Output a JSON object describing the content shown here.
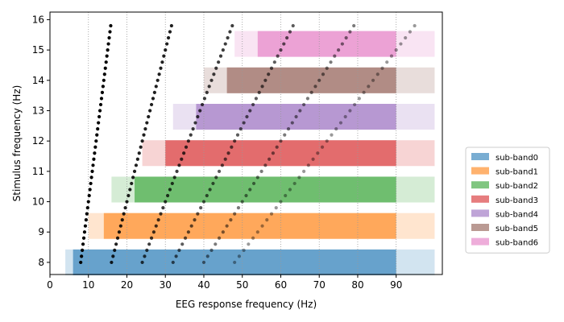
{
  "chart_data": {
    "type": "bar",
    "orientation": "horizontal-range",
    "title": "",
    "xlabel": "EEG response frequency (Hz)",
    "ylabel": "Stimulus frequency (Hz)",
    "xlim": [
      0,
      102
    ],
    "ylim": [
      7.6,
      16.25
    ],
    "x_ticks": [
      0,
      10,
      20,
      30,
      40,
      50,
      60,
      70,
      80,
      90
    ],
    "y_ticks": [
      8,
      9,
      10,
      11,
      12,
      13,
      14,
      15,
      16
    ],
    "vertical_dotted_gridlines": [
      10,
      20,
      30,
      40,
      50,
      60,
      70,
      80,
      90
    ],
    "band_high_limit": 90,
    "pale_extension_to": 100,
    "legend_placement": "right-outside",
    "colors": {
      "sub-band0": "#1f77b4",
      "sub-band1": "#ff7f0e",
      "sub-band2": "#2ca02c",
      "sub-band3": "#d62728",
      "sub-band4": "#9467bd",
      "sub-band5": "#8c564b",
      "sub-band6": "#e377c2"
    },
    "series": [
      {
        "name": "sub-band0",
        "y_center": 8,
        "start": 6,
        "end": 90,
        "pale_start": 4
      },
      {
        "name": "sub-band1",
        "y_center": 9.2,
        "start": 14,
        "end": 90,
        "pale_start": 10
      },
      {
        "name": "sub-band2",
        "y_center": 10.4,
        "start": 22,
        "end": 90,
        "pale_start": 16
      },
      {
        "name": "sub-band3",
        "y_center": 11.6,
        "start": 30,
        "end": 90,
        "pale_start": 24
      },
      {
        "name": "sub-band4",
        "y_center": 12.8,
        "start": 38,
        "end": 90,
        "pale_start": 32
      },
      {
        "name": "sub-band5",
        "y_center": 14.0,
        "start": 46,
        "end": 90,
        "pale_start": 40
      },
      {
        "name": "sub-band6",
        "y_center": 15.2,
        "start": 54,
        "end": 90,
        "pale_start": 48
      }
    ],
    "band_height": 0.85,
    "harmonics": {
      "multipliers": [
        1,
        2,
        3,
        4,
        5,
        6
      ],
      "stimulus_start": 8,
      "stimulus_end": 15.8,
      "stimulus_step": 0.2
    }
  }
}
